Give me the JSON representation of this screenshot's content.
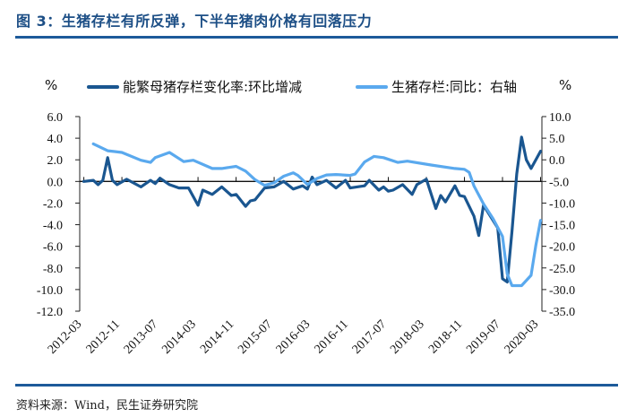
{
  "title": "图 3：生猪存栏有所反弹，下半年猪肉价格有回落压力",
  "source": "资料来源：Wind，民生证券研究院",
  "colors": {
    "title": "#1d4f86",
    "rule": "#1d5a9a",
    "series1": "#1a5690",
    "series2": "#5aa9ee"
  },
  "chart_data": {
    "type": "line",
    "left_unit": "%",
    "right_unit": "%",
    "grid": false,
    "legend_position": "top",
    "yleft": {
      "lim": [
        -12,
        6
      ],
      "ticks": [
        "6.0",
        "4.0",
        "2.0",
        "0.0",
        "-2.0",
        "-4.0",
        "-6.0",
        "-8.0",
        "-10.0",
        "-12.0"
      ]
    },
    "yright": {
      "lim": [
        -35,
        10
      ],
      "ticks": [
        "10.0",
        "5.0",
        "0.0",
        "-5.0",
        "-10.0",
        "-15.0",
        "-20.0",
        "-25.0",
        "-30.0",
        "-35.0"
      ]
    },
    "xlim": [
      "2012-03",
      "2020-03"
    ],
    "xticks": [
      "2012-03",
      "2012-11",
      "2013-07",
      "2014-03",
      "2014-11",
      "2015-07",
      "2016-03",
      "2016-11",
      "2017-07",
      "2018-03",
      "2018-11",
      "2019-07",
      "2020-03"
    ],
    "series": [
      {
        "name": "能繁母猪存栏变化率:环比增减",
        "axis": "left",
        "points": [
          [
            "2012-03",
            0.0
          ],
          [
            "2012-05",
            0.1
          ],
          [
            "2012-06",
            -0.3
          ],
          [
            "2012-07",
            0.1
          ],
          [
            "2012-08",
            2.2
          ],
          [
            "2012-09",
            0.1
          ],
          [
            "2012-10",
            -0.3
          ],
          [
            "2012-12",
            0.2
          ],
          [
            "2013-03",
            -0.5
          ],
          [
            "2013-05",
            0.1
          ],
          [
            "2013-06",
            -0.2
          ],
          [
            "2013-07",
            0.3
          ],
          [
            "2013-09",
            -0.3
          ],
          [
            "2013-11",
            -0.6
          ],
          [
            "2014-01",
            -0.6
          ],
          [
            "2014-03",
            -2.2
          ],
          [
            "2014-04",
            -0.8
          ],
          [
            "2014-06",
            -1.2
          ],
          [
            "2014-08",
            -0.5
          ],
          [
            "2014-10",
            -1.3
          ],
          [
            "2014-11",
            -1.2
          ],
          [
            "2015-01",
            -2.3
          ],
          [
            "2015-02",
            -1.8
          ],
          [
            "2015-03",
            -1.7
          ],
          [
            "2015-05",
            -0.6
          ],
          [
            "2015-07",
            -0.5
          ],
          [
            "2015-09",
            0.0
          ],
          [
            "2015-11",
            -0.7
          ],
          [
            "2016-01",
            -0.4
          ],
          [
            "2016-02",
            -0.7
          ],
          [
            "2016-03",
            0.4
          ],
          [
            "2016-04",
            -0.3
          ],
          [
            "2016-06",
            0.1
          ],
          [
            "2016-08",
            -0.6
          ],
          [
            "2016-10",
            0.1
          ],
          [
            "2016-11",
            -0.6
          ],
          [
            "2017-02",
            -0.4
          ],
          [
            "2017-03",
            0.1
          ],
          [
            "2017-05",
            -0.8
          ],
          [
            "2017-06",
            -0.5
          ],
          [
            "2017-07",
            -0.9
          ],
          [
            "2017-08",
            -0.8
          ],
          [
            "2017-10",
            -0.3
          ],
          [
            "2017-12",
            -1.2
          ],
          [
            "2018-01",
            -0.3
          ],
          [
            "2018-03",
            0.2
          ],
          [
            "2018-05",
            -2.5
          ],
          [
            "2018-06",
            -1.3
          ],
          [
            "2018-07",
            -1.9
          ],
          [
            "2018-09",
            -0.4
          ],
          [
            "2018-10",
            -1.3
          ],
          [
            "2018-11",
            -1.4
          ],
          [
            "2019-01",
            -3.2
          ],
          [
            "2019-02",
            -5.0
          ],
          [
            "2019-03",
            -2.2
          ],
          [
            "2019-04",
            -2.9
          ],
          [
            "2019-06",
            -4.3
          ],
          [
            "2019-07",
            -9.0
          ],
          [
            "2019-08",
            -9.3
          ],
          [
            "2019-09",
            -4.6
          ],
          [
            "2019-10",
            0.7
          ],
          [
            "2019-11",
            4.1
          ],
          [
            "2019-12",
            2.0
          ],
          [
            "2020-01",
            1.2
          ],
          [
            "2020-03",
            2.8
          ]
        ]
      },
      {
        "name": "生猪存栏:同比：右轴",
        "axis": "right",
        "points": [
          [
            "2012-05",
            3.7
          ],
          [
            "2012-08",
            2.1
          ],
          [
            "2012-11",
            1.7
          ],
          [
            "2013-03",
            -0.1
          ],
          [
            "2013-05",
            -0.6
          ],
          [
            "2013-06",
            0.5
          ],
          [
            "2013-09",
            1.7
          ],
          [
            "2013-12",
            -0.4
          ],
          [
            "2014-02",
            -0.1
          ],
          [
            "2014-06",
            -2.0
          ],
          [
            "2014-08",
            -2.0
          ],
          [
            "2014-11",
            -1.5
          ],
          [
            "2015-01",
            -2.6
          ],
          [
            "2015-03",
            -4.6
          ],
          [
            "2015-05",
            -5.9
          ],
          [
            "2015-07",
            -5.3
          ],
          [
            "2015-09",
            -3.8
          ],
          [
            "2015-11",
            -3.0
          ],
          [
            "2015-12",
            -3.6
          ],
          [
            "2016-02",
            -5.7
          ],
          [
            "2016-04",
            -4.3
          ],
          [
            "2016-06",
            -3.5
          ],
          [
            "2016-08",
            -3.4
          ],
          [
            "2016-11",
            -3.6
          ],
          [
            "2016-12",
            -3.3
          ],
          [
            "2017-02",
            -0.5
          ],
          [
            "2017-04",
            0.8
          ],
          [
            "2017-06",
            0.5
          ],
          [
            "2017-09",
            -0.6
          ],
          [
            "2017-11",
            -0.3
          ],
          [
            "2018-04",
            -1.2
          ],
          [
            "2018-09",
            -2.0
          ],
          [
            "2018-11",
            -2.2
          ],
          [
            "2018-12",
            -2.9
          ],
          [
            "2019-01",
            -6.0
          ],
          [
            "2019-03",
            -10.2
          ],
          [
            "2019-05",
            -13.6
          ],
          [
            "2019-07",
            -17.7
          ],
          [
            "2019-08",
            -26.4
          ],
          [
            "2019-09",
            -29.1
          ],
          [
            "2019-11",
            -29.1
          ],
          [
            "2020-01",
            -26.7
          ],
          [
            "2020-02",
            -19.8
          ],
          [
            "2020-03",
            -14.0
          ]
        ]
      }
    ]
  }
}
